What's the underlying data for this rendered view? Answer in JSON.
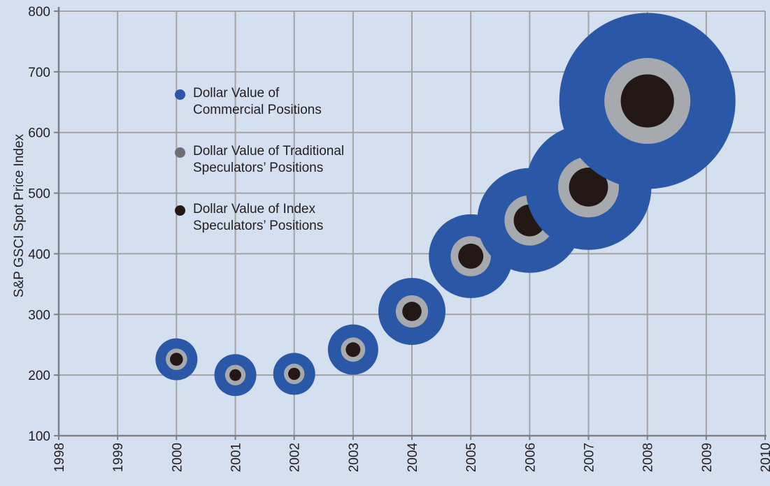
{
  "chart_data": {
    "type": "scatter",
    "title": "",
    "xlabel": "",
    "ylabel": "S&P GSCI Spot Price Index",
    "xlim": [
      1998,
      2010
    ],
    "ylim": [
      100,
      800
    ],
    "x_ticks": [
      "1998",
      "1999",
      "2000",
      "2001",
      "2002",
      "2003",
      "2004",
      "2005",
      "2006",
      "2007",
      "2008",
      "2009",
      "2010"
    ],
    "y_ticks": [
      "100",
      "200",
      "300",
      "400",
      "500",
      "600",
      "700",
      "800"
    ],
    "grid": true,
    "legend_placement": "upper-left",
    "series": [
      {
        "name": "Dollar Value of Commercial Positions",
        "color": "#2a58a6"
      },
      {
        "name": "Dollar Value of Traditional Speculators’ Positions",
        "color": "#a6a9ad"
      },
      {
        "name": "Dollar Value of Index Speculators’ Positions",
        "color": "#231815"
      }
    ],
    "points": [
      {
        "x": 2000,
        "y": 226,
        "commercial": 1.0,
        "traditional": 0.51,
        "index": 0.31
      },
      {
        "x": 2001,
        "y": 200,
        "commercial": 1.0,
        "traditional": 0.49,
        "index": 0.28
      },
      {
        "x": 2002,
        "y": 202,
        "commercial": 1.0,
        "traditional": 0.49,
        "index": 0.29
      },
      {
        "x": 2003,
        "y": 242,
        "commercial": 1.2,
        "traditional": 0.58,
        "index": 0.35
      },
      {
        "x": 2004,
        "y": 305,
        "commercial": 1.6,
        "traditional": 0.77,
        "index": 0.46
      },
      {
        "x": 2005,
        "y": 396,
        "commercial": 2.0,
        "traditional": 0.96,
        "index": 0.6
      },
      {
        "x": 2006,
        "y": 455,
        "commercial": 2.5,
        "traditional": 1.2,
        "index": 0.76
      },
      {
        "x": 2007,
        "y": 510,
        "commercial": 3.0,
        "traditional": 1.45,
        "index": 0.93
      },
      {
        "x": 2008,
        "y": 652,
        "commercial": 4.2,
        "traditional": 2.05,
        "index": 1.27
      }
    ]
  },
  "legend": {
    "items": [
      {
        "lines": [
          "Dollar Value of",
          "Commercial Positions"
        ],
        "color": "#2a58a6"
      },
      {
        "lines": [
          "Dollar Value of Traditional",
          "Speculators’ Positions"
        ],
        "color": "#6d6e71"
      },
      {
        "lines": [
          "Dollar Value of Index",
          "Speculators’ Positions"
        ],
        "color": "#231815"
      }
    ]
  }
}
